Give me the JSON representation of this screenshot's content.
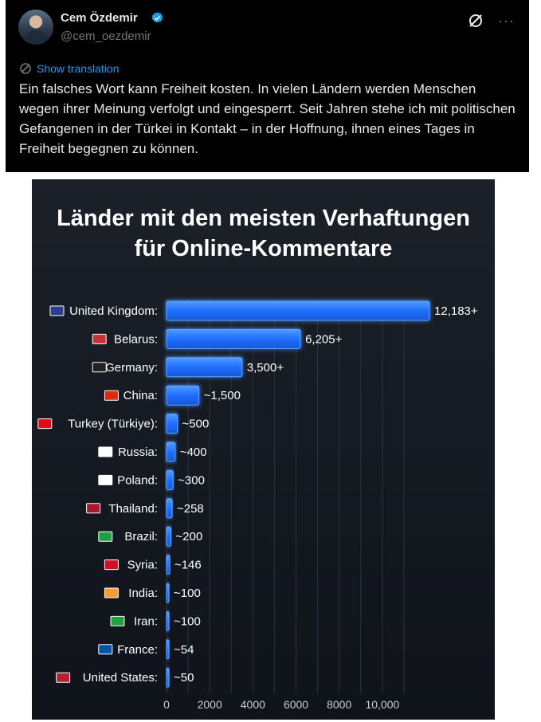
{
  "tweet": {
    "author_name": "Cem Özdemir",
    "handle": "@cem_oezdemir",
    "show_translation": "Show translation",
    "text": "Ein falsches Wort kann Freiheit kosten. In vielen Ländern werden Menschen wegen ihrer Meinung verfolgt und eingesperrt. Seit Jahren stehe ich mit politischen Gefangenen in der Türkei in Kontakt – in der Hoffnung, ihnen eines Tages in Freiheit begegnen zu können.",
    "icons": [
      "avatar",
      "verified-badge-icon",
      "grok-icon",
      "more-icon",
      "translate-icon"
    ],
    "colors": {
      "background": "#000000",
      "link": "#1d9bf0",
      "muted": "#71767b"
    }
  },
  "chart_data": {
    "type": "bar",
    "orientation": "horizontal",
    "title_lines": [
      "Länder mit den meisten Verhaftungen",
      "für Online-Kommentare"
    ],
    "categories": [
      "United Kingdom:",
      "Belarus:",
      "Germany:",
      "China:",
      "Turkey (Türkiye):",
      "Russia:",
      "Poland:",
      "Thailand:",
      "Brazil:",
      "Syria:",
      "India:",
      "Iran:",
      "France:",
      "United States:"
    ],
    "flag_icons": [
      "flag-uk-icon",
      "flag-belarus-icon",
      "flag-germany-icon",
      "flag-china-icon",
      "flag-turkey-icon",
      "flag-russia-icon",
      "flag-poland-icon",
      "flag-thailand-icon",
      "flag-brazil-icon",
      "flag-syria-icon",
      "flag-india-icon",
      "flag-iran-icon",
      "flag-france-icon",
      "flag-usa-icon"
    ],
    "values": [
      12183,
      6205,
      3500,
      1500,
      500,
      400,
      300,
      258,
      200,
      146,
      100,
      100,
      54,
      50
    ],
    "value_labels": [
      "12,183+",
      "6,205+",
      "3,500+",
      "~1,500",
      "~500",
      "~400",
      "~300",
      "~258",
      "~200",
      "~146",
      "~100",
      "~100",
      "~54",
      "~50"
    ],
    "x_ticks": [
      0,
      2000,
      4000,
      6000,
      8000,
      10000
    ],
    "x_tick_labels": [
      "0",
      "2000",
      "4000",
      "6000",
      "8000",
      "10,000"
    ],
    "xlim": [
      0,
      11000
    ],
    "grid": true,
    "colors": {
      "bar": "#1f6fff",
      "bar_glow": "#3d8bff",
      "background": "#141820",
      "text": "#ffffff",
      "axis": "#c9ced6"
    }
  }
}
